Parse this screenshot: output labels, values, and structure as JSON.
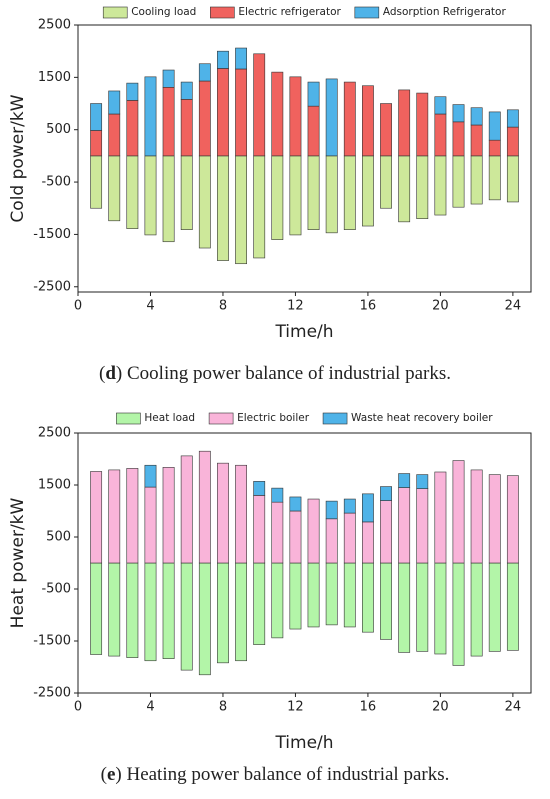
{
  "chart_data": [
    {
      "type": "bar",
      "stacked": true,
      "caption": {
        "open": "(",
        "letter": "d",
        "rest": ") Cooling power balance of industrial parks."
      },
      "x_label": "Time/h",
      "y_label": "Cold power/kW",
      "x": [
        1,
        2,
        3,
        4,
        5,
        6,
        7,
        8,
        9,
        10,
        11,
        12,
        13,
        14,
        15,
        16,
        17,
        18,
        19,
        20,
        21,
        22,
        23,
        24
      ],
      "xlim": [
        0,
        25
      ],
      "xticks": [
        0,
        4,
        8,
        12,
        16,
        20,
        24
      ],
      "ylim": [
        -2600,
        2500
      ],
      "yticks": [
        -2500,
        -1500,
        -500,
        500,
        1500,
        2500
      ],
      "series": [
        {
          "name": "Cooling load",
          "color": "#cde89a",
          "values": [
            -1000,
            -1240,
            -1390,
            -1510,
            -1640,
            -1410,
            -1760,
            -2000,
            -2060,
            -1950,
            -1600,
            -1510,
            -1410,
            -1470,
            -1410,
            -1340,
            -1000,
            -1260,
            -1200,
            -1130,
            -980,
            -920,
            -840,
            -880
          ]
        },
        {
          "name": "Electric refrigerator",
          "color": "#f0625e",
          "values": [
            485,
            800,
            1060,
            0,
            1310,
            1080,
            1430,
            1670,
            1660,
            1950,
            1600,
            1510,
            950,
            0,
            1410,
            1340,
            1000,
            1260,
            1200,
            800,
            650,
            590,
            300,
            550
          ]
        },
        {
          "name": "Adsorption Refrigerator",
          "color": "#4fb3e8",
          "values": [
            515,
            440,
            330,
            1510,
            330,
            330,
            330,
            330,
            400,
            0,
            0,
            0,
            460,
            1470,
            0,
            0,
            0,
            0,
            0,
            330,
            330,
            330,
            540,
            330
          ]
        }
      ]
    },
    {
      "type": "bar",
      "stacked": true,
      "caption": {
        "open": "(",
        "letter": "e",
        "rest": ") Heating power balance of industrial parks."
      },
      "x_label": "Time/h",
      "y_label": "Heat power/kW",
      "x": [
        1,
        2,
        3,
        4,
        5,
        6,
        7,
        8,
        9,
        10,
        11,
        12,
        13,
        14,
        15,
        16,
        17,
        18,
        19,
        20,
        21,
        22,
        23,
        24
      ],
      "xlim": [
        0,
        25
      ],
      "xticks": [
        0,
        4,
        8,
        12,
        16,
        20,
        24
      ],
      "ylim": [
        -2500,
        2500
      ],
      "yticks": [
        -2500,
        -1500,
        -500,
        500,
        1500,
        2500
      ],
      "series": [
        {
          "name": "Heat load",
          "color": "#b3f5a8",
          "values": [
            -1760,
            -1790,
            -1820,
            -1880,
            -1840,
            -2060,
            -2150,
            -1920,
            -1880,
            -1570,
            -1440,
            -1270,
            -1230,
            -1190,
            -1230,
            -1330,
            -1470,
            -1720,
            -1700,
            -1750,
            -1970,
            -1790,
            -1700,
            -1680
          ]
        },
        {
          "name": "Electric boiler",
          "color": "#f9b4d9",
          "values": [
            1760,
            1790,
            1820,
            1460,
            1840,
            2060,
            2150,
            1920,
            1880,
            1300,
            1170,
            1000,
            1230,
            850,
            960,
            790,
            1200,
            1450,
            1430,
            1750,
            1970,
            1790,
            1700,
            1680
          ]
        },
        {
          "name": "Waste heat recovery boiler",
          "color": "#4fb3e8",
          "values": [
            0,
            0,
            0,
            420,
            0,
            0,
            0,
            0,
            0,
            270,
            270,
            270,
            0,
            340,
            270,
            540,
            270,
            270,
            270,
            0,
            0,
            0,
            0,
            0
          ]
        }
      ]
    }
  ]
}
